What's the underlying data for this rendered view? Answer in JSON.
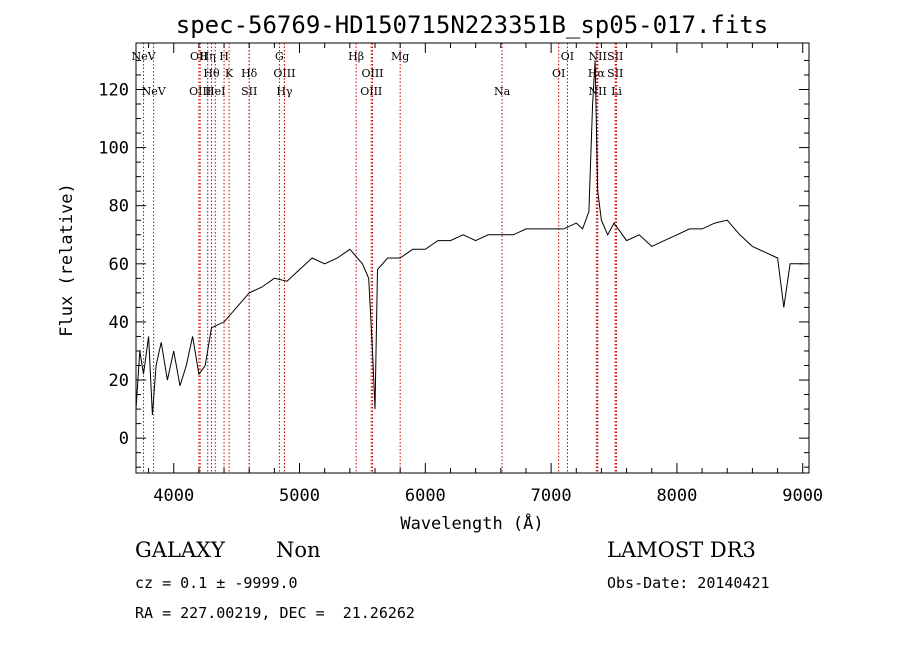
{
  "chart_data": {
    "type": "line",
    "title": "spec-56769-HD150715N223351B_sp05-017.fits",
    "xlabel": "Wavelength (Å)",
    "ylabel": "Flux (relative)",
    "xlim": [
      3700,
      9050
    ],
    "ylim": [
      -12,
      136
    ],
    "xticks": [
      4000,
      5000,
      6000,
      7000,
      8000,
      9000
    ],
    "yticks": [
      0,
      20,
      40,
      60,
      80,
      100,
      120
    ],
    "grid": false,
    "series": [
      {
        "x": [
          3700,
          3730,
          3760,
          3800,
          3830,
          3860,
          3900,
          3950,
          4000,
          4050,
          4100,
          4150,
          4200,
          4250,
          4300,
          4400,
          4500,
          4600,
          4700,
          4800,
          4900,
          5000,
          5100,
          5200,
          5300,
          5400,
          5500,
          5550,
          5580,
          5600,
          5620,
          5700,
          5800,
          5900,
          6000,
          6100,
          6200,
          6300,
          6400,
          6500,
          6600,
          6700,
          6800,
          6900,
          7000,
          7100,
          7200,
          7250,
          7300,
          7330,
          7350,
          7370,
          7400,
          7450,
          7500,
          7600,
          7700,
          7800,
          7900,
          8000,
          8100,
          8200,
          8300,
          8400,
          8500,
          8600,
          8700,
          8800,
          8850,
          8900,
          9000
        ],
        "values": [
          10,
          30,
          22,
          35,
          8,
          25,
          33,
          20,
          30,
          18,
          25,
          35,
          22,
          25,
          38,
          40,
          45,
          50,
          52,
          55,
          54,
          58,
          62,
          60,
          62,
          65,
          60,
          55,
          30,
          10,
          58,
          62,
          62,
          65,
          65,
          68,
          68,
          70,
          68,
          70,
          70,
          70,
          72,
          72,
          72,
          72,
          74,
          72,
          78,
          115,
          130,
          85,
          75,
          70,
          74,
          68,
          70,
          66,
          68,
          70,
          72,
          72,
          74,
          75,
          70,
          66,
          64,
          62,
          45,
          60,
          60
        ]
      }
    ],
    "spectral_lines": [
      {
        "label": "NeV",
        "x": 3760,
        "row": "top"
      },
      {
        "label": "NeV",
        "x": 3840,
        "row": "bottom"
      },
      {
        "label": "OII",
        "x": 4200,
        "row": "top"
      },
      {
        "label": "OIII",
        "x": 4210,
        "row": "bottom"
      },
      {
        "label": "Hη",
        "x": 4270,
        "row": "top"
      },
      {
        "label": "Hθ",
        "x": 4300,
        "row": "middle"
      },
      {
        "label": "HeI",
        "x": 4330,
        "row": "bottom"
      },
      {
        "label": "H",
        "x": 4400,
        "row": "top"
      },
      {
        "label": "K",
        "x": 4440,
        "row": "middle"
      },
      {
        "label": "SII",
        "x": 4600,
        "row": "bottom"
      },
      {
        "label": "Hδ",
        "x": 4600,
        "row": "middle"
      },
      {
        "label": "G",
        "x": 4840,
        "row": "top"
      },
      {
        "label": "OIII",
        "x": 4880,
        "row": "middle"
      },
      {
        "label": "Hγ",
        "x": 4880,
        "row": "bottom"
      },
      {
        "label": "Hβ",
        "x": 5450,
        "row": "top"
      },
      {
        "label": "OIII",
        "x": 5580,
        "row": "middle"
      },
      {
        "label": "OIII",
        "x": 5570,
        "row": "bottom"
      },
      {
        "label": "Mg",
        "x": 5800,
        "row": "top"
      },
      {
        "label": "Na",
        "x": 6610,
        "row": "bottom"
      },
      {
        "label": "OI",
        "x": 7130,
        "row": "top"
      },
      {
        "label": "OI",
        "x": 7060,
        "row": "middle"
      },
      {
        "label": "NII",
        "x": 7370,
        "row": "top"
      },
      {
        "label": "Hα",
        "x": 7360,
        "row": "middle"
      },
      {
        "label": "NII",
        "x": 7370,
        "row": "bottom"
      },
      {
        "label": "SII",
        "x": 7510,
        "row": "top"
      },
      {
        "label": "SII",
        "x": 7510,
        "row": "middle"
      },
      {
        "label": "Li",
        "x": 7520,
        "row": "bottom"
      }
    ]
  },
  "info": {
    "class_label": "GALAXY",
    "subclass_label": "Non",
    "survey_label": "LAMOST DR3",
    "cz_text": "cz = 0.1 ± -9999.0",
    "obs_date_text": "Obs-Date: 20140421",
    "radec_text": "RA = 227.00219, DEC =  21.26262"
  },
  "colors": {
    "line_marker": "#cc0000",
    "spectrum": "#000000"
  }
}
